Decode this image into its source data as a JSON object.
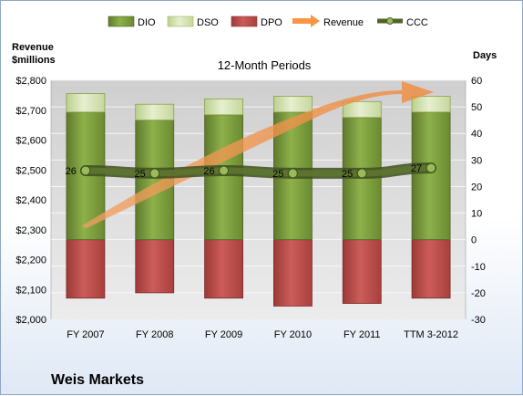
{
  "company": "Weis Markets",
  "chart_data": {
    "type": "bar",
    "title": "12-Month Periods",
    "categories": [
      "FY 2007",
      "FY 2008",
      "FY 2009",
      "FY 2010",
      "FY 2011",
      "TTM 3-2012"
    ],
    "left_axis": {
      "label_line1": "Revenue",
      "label_line2": "$millions",
      "range": [
        2000,
        2800
      ],
      "ticks": [
        "$2,000",
        "$2,100",
        "$2,200",
        "$2,300",
        "$2,400",
        "$2,500",
        "$2,600",
        "$2,700",
        "$2,800"
      ]
    },
    "right_axis": {
      "label": "Days",
      "range": [
        -30,
        60
      ],
      "ticks": [
        "-30",
        "-20",
        "-10",
        "0",
        "10",
        "20",
        "30",
        "40",
        "50",
        "60"
      ]
    },
    "series": [
      {
        "name": "DIO",
        "kind": "stacked-bar",
        "color": "#77933c",
        "values": [
          48,
          45,
          47,
          48,
          46,
          48
        ]
      },
      {
        "name": "DSO",
        "kind": "stacked-bar",
        "color": "#d7e4bd",
        "values": [
          7,
          6,
          6,
          6,
          6,
          6
        ]
      },
      {
        "name": "DPO",
        "kind": "stacked-bar-negative",
        "color": "#c0504d",
        "values": [
          -22,
          -20,
          -22,
          -25,
          -24,
          -22
        ]
      },
      {
        "name": "Revenue",
        "kind": "arrow",
        "color": "#f79646"
      },
      {
        "name": "CCC",
        "kind": "line",
        "color": "#4f6228",
        "values": [
          26,
          25,
          26,
          25,
          25,
          27
        ]
      }
    ],
    "ccc_labels": [
      "26",
      "25",
      "26",
      "25",
      "25",
      "27"
    ],
    "legend_position": "top",
    "grid": true
  }
}
